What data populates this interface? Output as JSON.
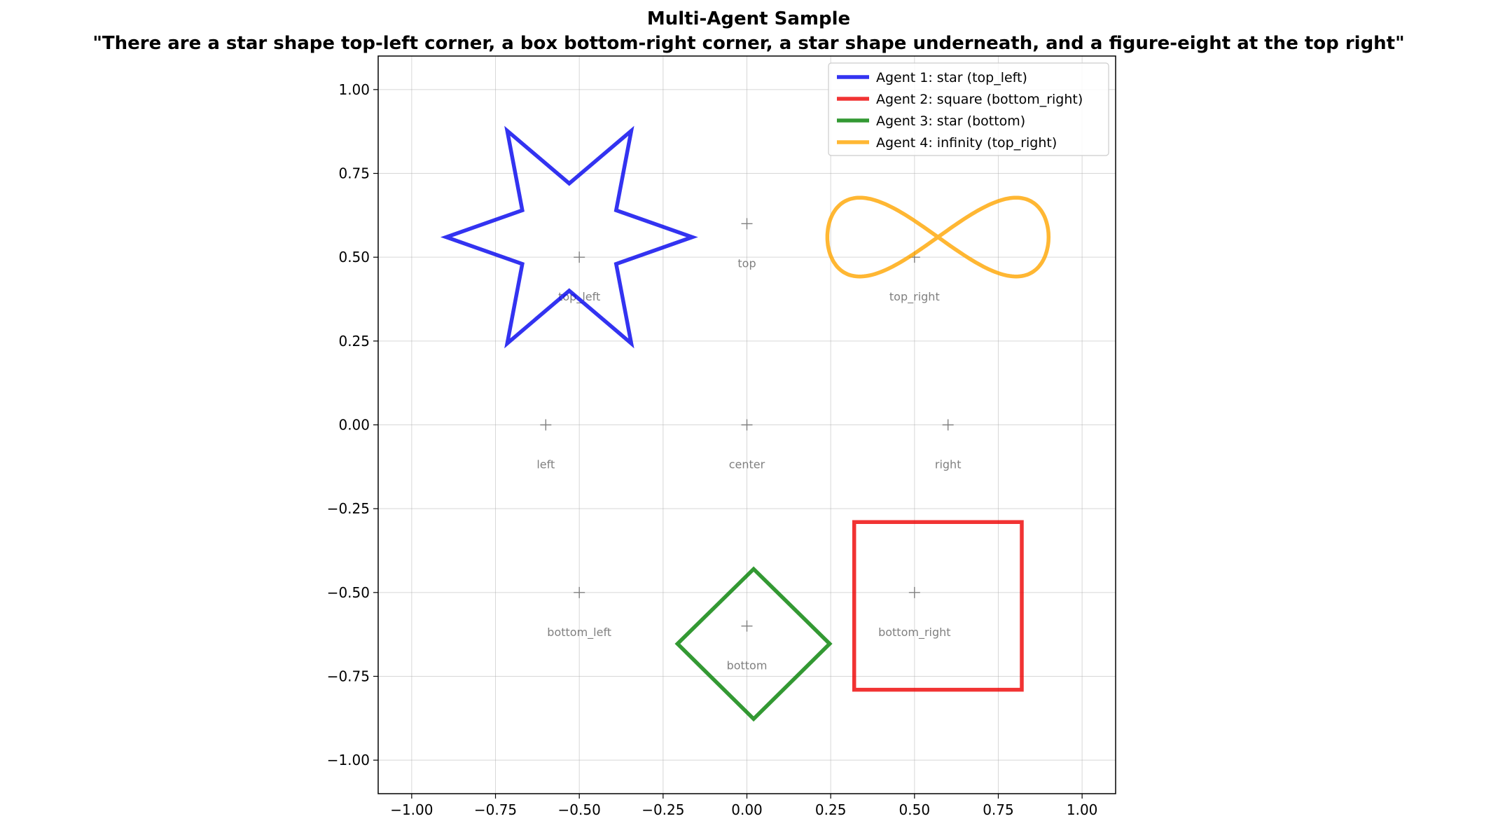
{
  "chart_data": {
    "type": "line",
    "title": "Multi-Agent Sample",
    "subtitle": "\"There are a star shape top-left corner, a box bottom-right corner, a star shape underneath, and a figure-eight at the top right\"",
    "xlabel": "",
    "ylabel": "",
    "xlim": [
      -1.1,
      1.1
    ],
    "ylim": [
      -1.1,
      1.1
    ],
    "xticks": [
      -1.0,
      -0.75,
      -0.5,
      -0.25,
      0.0,
      0.25,
      0.5,
      0.75,
      1.0
    ],
    "xtick_labels": [
      "−1.00",
      "−0.75",
      "−0.50",
      "−0.25",
      "0.00",
      "0.25",
      "0.50",
      "0.75",
      "1.00"
    ],
    "yticks": [
      1.0,
      0.75,
      0.5,
      0.25,
      0.0,
      -0.25,
      -0.5,
      -0.75,
      -1.0
    ],
    "ytick_labels": [
      "1.00",
      "0.75",
      "0.50",
      "0.25",
      "0.00",
      "−0.25",
      "−0.50",
      "−0.75",
      "−1.00"
    ],
    "grid": true,
    "legend_position": "top-right",
    "series": [
      {
        "name": "Agent 1: star (top_left)",
        "shape": "star",
        "color": "#0000ee",
        "points": [
          [
            -0.163,
            0.56
          ],
          [
            -0.39,
            0.48
          ],
          [
            -0.345,
            0.243
          ],
          [
            -0.53,
            0.4
          ],
          [
            -0.715,
            0.243
          ],
          [
            -0.67,
            0.48
          ],
          [
            -0.897,
            0.56
          ],
          [
            -0.67,
            0.64
          ],
          [
            -0.715,
            0.877
          ],
          [
            -0.53,
            0.72
          ],
          [
            -0.345,
            0.877
          ],
          [
            -0.39,
            0.64
          ],
          [
            -0.163,
            0.56
          ]
        ]
      },
      {
        "name": "Agent 2: square (bottom_right)",
        "shape": "square",
        "color": "#ee0000",
        "points": [
          [
            0.32,
            -0.29
          ],
          [
            0.82,
            -0.29
          ],
          [
            0.82,
            -0.79
          ],
          [
            0.32,
            -0.79
          ],
          [
            0.32,
            -0.29
          ]
        ]
      },
      {
        "name": "Agent 3: star (bottom)",
        "shape": "star",
        "color": "#008000",
        "points": [
          [
            0.02,
            -0.43
          ],
          [
            0.247,
            -0.653
          ],
          [
            0.02,
            -0.877
          ],
          [
            -0.207,
            -0.653
          ],
          [
            0.02,
            -0.43
          ]
        ]
      },
      {
        "name": "Agent 4: infinity (top_right)",
        "shape": "infinity",
        "color": "#ffa500",
        "center": [
          0.57,
          0.56
        ],
        "half_width": 0.33,
        "half_height": 0.235
      }
    ],
    "markers": [
      {
        "label": "top_left",
        "x": -0.5,
        "y": 0.5
      },
      {
        "label": "top",
        "x": 0.0,
        "y": 0.6
      },
      {
        "label": "top_right",
        "x": 0.5,
        "y": 0.5
      },
      {
        "label": "left",
        "x": -0.6,
        "y": 0.0
      },
      {
        "label": "center",
        "x": 0.0,
        "y": 0.0
      },
      {
        "label": "right",
        "x": 0.6,
        "y": 0.0
      },
      {
        "label": "bottom_left",
        "x": -0.5,
        "y": -0.5
      },
      {
        "label": "bottom",
        "x": 0.0,
        "y": -0.6
      },
      {
        "label": "bottom_right",
        "x": 0.5,
        "y": -0.5
      }
    ]
  }
}
